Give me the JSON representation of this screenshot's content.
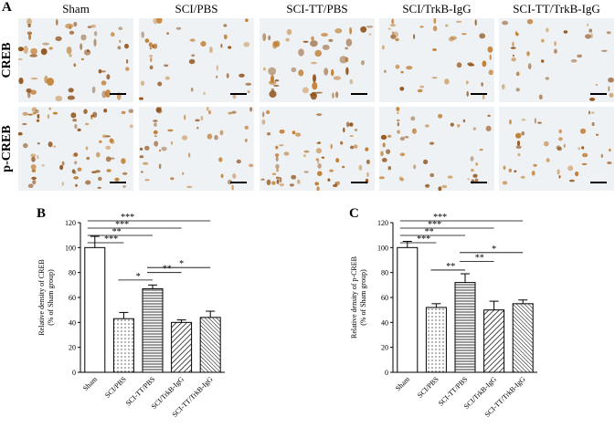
{
  "panel_a": {
    "letter": "A",
    "columns": [
      "Sham",
      "SCI/PBS",
      "SCI-TT/PBS",
      "SCI/TrkB-IgG",
      "SCI-TT/TrkB-IgG"
    ],
    "rows": [
      "CREB",
      "p-CREB"
    ],
    "colors": {
      "background": "#eef2f4",
      "stain": "#c07a2c",
      "stain_dark": "#8f4f16"
    }
  },
  "chart_data": [
    {
      "panel": "B",
      "type": "bar",
      "ylabel": "Relative density of CREB\n(% of Sham group)",
      "categories": [
        "Sham",
        "SCI/PBS",
        "SCI-TT/PBS",
        "SCI/TrkB-IgG",
        "SCI-TT/TrkB-IgG"
      ],
      "values": [
        100,
        43,
        67,
        40,
        44
      ],
      "errors": [
        9,
        5,
        3,
        2,
        5
      ],
      "patterns": [
        "none",
        "dots",
        "horizontal",
        "diagonal",
        "diagonal-dense"
      ],
      "ylim": [
        0,
        120
      ],
      "yticks": [
        0,
        20,
        40,
        60,
        80,
        100,
        120
      ],
      "significance": [
        {
          "from": 0,
          "to": 1,
          "label": "***"
        },
        {
          "from": 0,
          "to": 2,
          "label": "**"
        },
        {
          "from": 0,
          "to": 3,
          "label": "***"
        },
        {
          "from": 0,
          "to": 4,
          "label": "***"
        },
        {
          "from": 1,
          "to": 2,
          "label": "*"
        },
        {
          "from": 2,
          "to": 3,
          "label": "**"
        },
        {
          "from": 2,
          "to": 4,
          "label": "*"
        }
      ]
    },
    {
      "panel": "C",
      "type": "bar",
      "ylabel": "Relative density of p-CREB\n(% of Sham group)",
      "categories": [
        "Sham",
        "SCI/PBS",
        "SCI-TT/PBS",
        "SCI/TrkB-IgG",
        "SCI-TT/TrkB-IgG"
      ],
      "values": [
        100,
        52,
        72,
        50,
        55
      ],
      "errors": [
        5,
        3,
        7,
        7,
        3
      ],
      "patterns": [
        "none",
        "dots",
        "horizontal",
        "diagonal",
        "diagonal-dense"
      ],
      "ylim": [
        0,
        120
      ],
      "yticks": [
        0,
        20,
        40,
        60,
        80,
        100,
        120
      ],
      "significance": [
        {
          "from": 0,
          "to": 1,
          "label": "***"
        },
        {
          "from": 0,
          "to": 2,
          "label": "**"
        },
        {
          "from": 0,
          "to": 3,
          "label": "***"
        },
        {
          "from": 0,
          "to": 4,
          "label": "***"
        },
        {
          "from": 1,
          "to": 2,
          "label": "**"
        },
        {
          "from": 2,
          "to": 3,
          "label": "**"
        },
        {
          "from": 2,
          "to": 4,
          "label": "*"
        }
      ]
    }
  ]
}
